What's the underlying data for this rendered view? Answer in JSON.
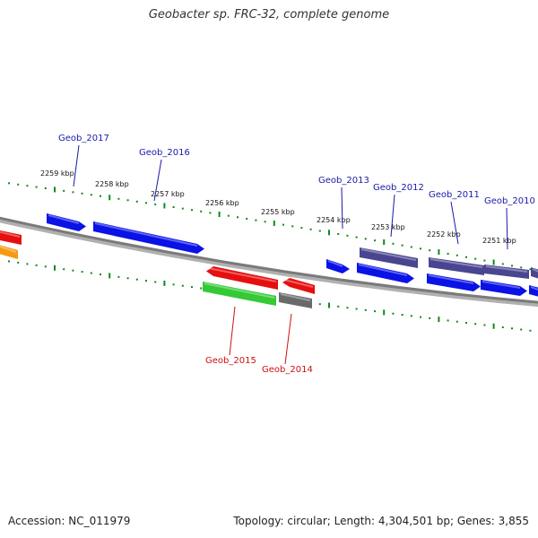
{
  "title": "Geobacter sp. FRC-32, complete genome",
  "accession": "Accession: NC_011979",
  "summary": "Topology: circular; Length: 4,304,501 bp; Genes: 3,855",
  "colors": {
    "blue": "#0a12e6",
    "red": "#e60f0f",
    "green": "#35c935",
    "gray": "#6a6a6a",
    "slate": "#4a4590",
    "orange": "#f59a12",
    "backbone": "#7a7a7a",
    "ruler": "#0b8a1a",
    "label_forward": "#1a1aaa",
    "label_reverse": "#cc1111"
  },
  "ruler_labels": [
    {
      "text": "2259 kbp"
    },
    {
      "text": "2258 kbp"
    },
    {
      "text": "2257 kbp"
    },
    {
      "text": "2256 kbp"
    },
    {
      "text": "2255 kbp"
    },
    {
      "text": "2254 kbp"
    },
    {
      "text": "2253 kbp"
    },
    {
      "text": "2252 kbp"
    },
    {
      "text": "2251 kbp"
    }
  ],
  "gene_labels": [
    {
      "text": "Geob_2017",
      "strand": "forward"
    },
    {
      "text": "Geob_2016",
      "strand": "forward"
    },
    {
      "text": "Geob_2013",
      "strand": "forward"
    },
    {
      "text": "Geob_2012",
      "strand": "forward"
    },
    {
      "text": "Geob_2011",
      "strand": "forward"
    },
    {
      "text": "Geob_2010",
      "strand": "forward"
    },
    {
      "text": "Geob_2015",
      "strand": "reverse"
    },
    {
      "text": "Geob_2014",
      "strand": "reverse"
    }
  ]
}
